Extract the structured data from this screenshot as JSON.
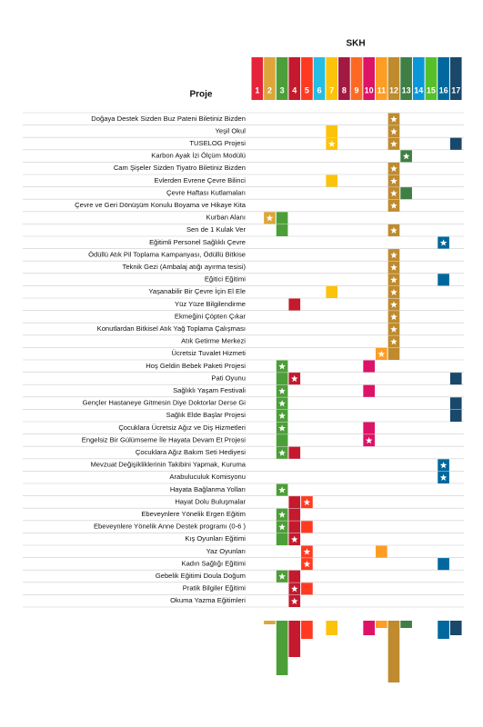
{
  "header": {
    "title": "SKH",
    "column_label": "Proje"
  },
  "columns": [
    {
      "label": "1",
      "color": "#e5243b"
    },
    {
      "label": "2",
      "color": "#dda63a"
    },
    {
      "label": "3",
      "color": "#4c9f38"
    },
    {
      "label": "4",
      "color": "#c5192d"
    },
    {
      "label": "5",
      "color": "#ff3a21"
    },
    {
      "label": "6",
      "color": "#26bde2"
    },
    {
      "label": "7",
      "color": "#fcc30b"
    },
    {
      "label": "8",
      "color": "#a21942"
    },
    {
      "label": "9",
      "color": "#fd6925"
    },
    {
      "label": "10",
      "color": "#dd1367"
    },
    {
      "label": "11",
      "color": "#fd9d24"
    },
    {
      "label": "12",
      "color": "#bf8b2e"
    },
    {
      "label": "13",
      "color": "#3f7e44"
    },
    {
      "label": "14",
      "color": "#0a97d9"
    },
    {
      "label": "15",
      "color": "#56c02b"
    },
    {
      "label": "16",
      "color": "#00689d"
    },
    {
      "label": "17",
      "color": "#19486a"
    }
  ],
  "rows": [
    {
      "label": "Doğaya Destek Sizden  Buz Pateni Biletiniz Bizden",
      "sdg": [
        12
      ],
      "star": [
        12
      ]
    },
    {
      "label": "Yeşil Okul",
      "sdg": [
        7,
        12
      ],
      "star": [
        12
      ]
    },
    {
      "label": "TUSELOG Projesi",
      "sdg": [
        7,
        12,
        17
      ],
      "star": [
        7,
        12
      ]
    },
    {
      "label": "Karbon Ayak İzi Ölçüm Modülü",
      "sdg": [
        13
      ],
      "star": [
        13
      ]
    },
    {
      "label": "Cam Şişeler Sizden Tiyatro Biletiniz Bizden",
      "sdg": [
        12
      ],
      "star": [
        12
      ]
    },
    {
      "label": "Evlerden Evrene Çevre Bilinci",
      "sdg": [
        7,
        12
      ],
      "star": [
        12
      ]
    },
    {
      "label": "Çevre Haftası Kutlamaları",
      "sdg": [
        12,
        13
      ],
      "star": [
        12
      ]
    },
    {
      "label": "Çevre ve Geri Dönüşüm Konulu Boyama ve Hikaye Kita",
      "sdg": [
        12
      ],
      "star": [
        12
      ]
    },
    {
      "label": "Kurban Alanı",
      "sdg": [
        2,
        3
      ],
      "star": [
        2
      ]
    },
    {
      "label": "Sen de 1 Kulak Ver",
      "sdg": [
        3,
        12
      ],
      "star": [
        12
      ]
    },
    {
      "label": "Eğitimli Personel Sağlıklı Çevre",
      "sdg": [
        16
      ],
      "star": [
        16
      ]
    },
    {
      "label": "Ödüllü Atık Pil Toplama Kampanyası, Ödüllü Bitkise",
      "sdg": [
        12
      ],
      "star": [
        12
      ]
    },
    {
      "label": "Teknik Gezi (Ambalaj atığı ayırma tesisi)",
      "sdg": [
        12
      ],
      "star": [
        12
      ]
    },
    {
      "label": "Eğitici Eğitimi",
      "sdg": [
        12,
        16
      ],
      "star": [
        12
      ]
    },
    {
      "label": "Yaşanabilir Bir Çevre İçin El Ele",
      "sdg": [
        7,
        12
      ],
      "star": [
        12
      ]
    },
    {
      "label": "Yüz Yüze Bilgilendirme",
      "sdg": [
        4,
        12
      ],
      "star": [
        12
      ]
    },
    {
      "label": "Ekmeğini Çöpten Çıkar",
      "sdg": [
        12
      ],
      "star": [
        12
      ]
    },
    {
      "label": "Konutlardan Bitkisel Atık Yağ Toplama Çalışması",
      "sdg": [
        12
      ],
      "star": [
        12
      ]
    },
    {
      "label": "Atık Getirme Merkezi",
      "sdg": [
        12
      ],
      "star": [
        12
      ]
    },
    {
      "label": "Ücretsiz Tuvalet Hizmeti",
      "sdg": [
        11,
        12
      ],
      "star": [
        11
      ]
    },
    {
      "label": "Hoş Geldin Bebek Paketi Projesi",
      "sdg": [
        3,
        10
      ],
      "star": [
        3
      ]
    },
    {
      "label": "Pati Oyunu",
      "sdg": [
        3,
        4,
        17
      ],
      "star": [
        4
      ]
    },
    {
      "label": "Sağlıklı Yaşam Festivali",
      "sdg": [
        3,
        10
      ],
      "star": [
        3
      ]
    },
    {
      "label": "Gençler Hastaneye Gitmesin Diye Doktorlar Derse Gi",
      "sdg": [
        3,
        17
      ],
      "star": [
        3
      ]
    },
    {
      "label": "Sağlık Elde Başlar Projesi",
      "sdg": [
        3,
        17
      ],
      "star": [
        3
      ]
    },
    {
      "label": "Çocuklara Ücretsiz Ağız ve Diş Hizmetleri",
      "sdg": [
        3,
        10
      ],
      "star": [
        3
      ]
    },
    {
      "label": "Engelsiz Bir Gülümseme İle Hayata Devam Et Projesi",
      "sdg": [
        3,
        10
      ],
      "star": [
        10
      ]
    },
    {
      "label": "Çocuklara Ağız Bakım Seti Hediyesi",
      "sdg": [
        3,
        4
      ],
      "star": [
        3
      ]
    },
    {
      "label": "Mevzuat Değişikliklerinin Takibini Yapmak, Kuruma ",
      "sdg": [
        16
      ],
      "star": [
        16
      ]
    },
    {
      "label": "Arabuluculuk Komisyonu",
      "sdg": [
        16
      ],
      "star": [
        16
      ]
    },
    {
      "label": "Hayata Bağlanma Yolları",
      "sdg": [
        3
      ],
      "star": [
        3
      ]
    },
    {
      "label": "Hayat Dolu Buluşmalar",
      "sdg": [
        4,
        5
      ],
      "star": [
        5
      ]
    },
    {
      "label": "Ebeveynlere Yönelik Ergen Eğitim",
      "sdg": [
        3,
        4
      ],
      "star": [
        3
      ]
    },
    {
      "label": "Ebeveynlere Yönelik Anne Destek programı (0-6 )",
      "sdg": [
        3,
        4,
        5
      ],
      "star": [
        3
      ]
    },
    {
      "label": "Kış Oyunları Eğitimi",
      "sdg": [
        3,
        4
      ],
      "star": [
        4
      ]
    },
    {
      "label": "Yaz Oyunları",
      "sdg": [
        5,
        11
      ],
      "star": [
        5
      ]
    },
    {
      "label": "Kadın Sağlığı Eğitimi",
      "sdg": [
        5,
        16
      ],
      "star": [
        5
      ]
    },
    {
      "label": "Gebelik Eğitimi Doula Doğum",
      "sdg": [
        3,
        4
      ],
      "star": [
        3
      ]
    },
    {
      "label": "Pratik Bilgiler Eğitimi",
      "sdg": [
        4,
        5
      ],
      "star": [
        4
      ]
    },
    {
      "label": "Okuma Yazma Eğitimleri",
      "sdg": [
        4
      ],
      "star": [
        4
      ]
    }
  ]
}
